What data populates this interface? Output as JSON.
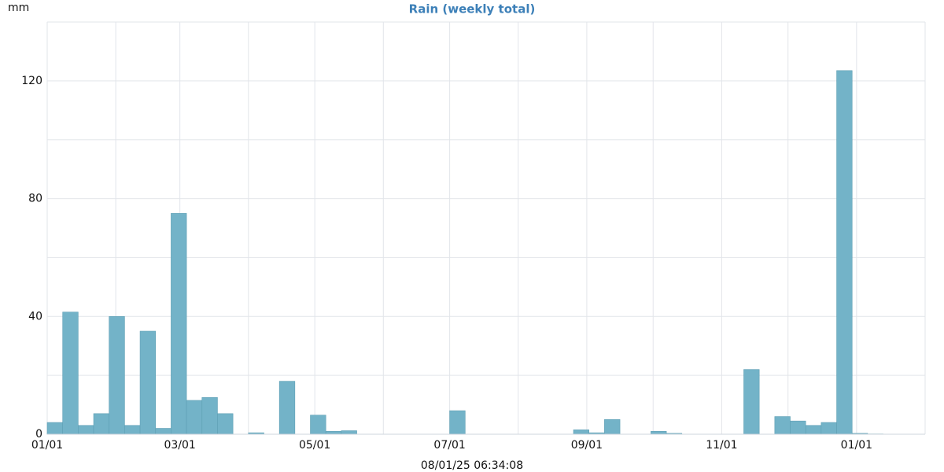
{
  "chart_data": {
    "type": "histogram",
    "title": "Rain (weekly total)",
    "y_label": "mm",
    "x_label": "08/01/25 06:34:08",
    "color": "#73b3c8",
    "bins": [
      0,
      7,
      14,
      21,
      28,
      35,
      42,
      49,
      56,
      63,
      70,
      77,
      84,
      91,
      98,
      105,
      112,
      119,
      126,
      133,
      140,
      147,
      154,
      161,
      168,
      175,
      182,
      189,
      196,
      203,
      210,
      217,
      224,
      231,
      238,
      245,
      252,
      259,
      266,
      273,
      280,
      287,
      294,
      301,
      308,
      315,
      322,
      329,
      336,
      343,
      350,
      357,
      364,
      371,
      378
    ],
    "values": [
      4,
      41.5,
      3,
      7,
      40,
      3,
      35,
      2,
      75,
      11.5,
      12.5,
      7,
      0,
      0.5,
      0,
      18,
      0,
      6.5,
      1,
      1.2,
      0,
      0,
      0,
      0,
      0,
      0,
      8,
      0,
      0,
      0,
      0,
      0,
      0,
      0,
      1.5,
      0.5,
      5,
      0,
      0,
      1,
      0.3,
      0,
      0,
      0,
      0,
      22,
      0,
      6,
      4.5,
      3,
      4,
      123.5,
      0.3,
      0.1
    ],
    "xlim": [
      0,
      397
    ],
    "xticks": [
      {
        "value": 0,
        "label": "01/01"
      },
      {
        "value": 60,
        "label": "03/01"
      },
      {
        "value": 121,
        "label": "05/01"
      },
      {
        "value": 182,
        "label": "07/01"
      },
      {
        "value": 244,
        "label": "09/01"
      },
      {
        "value": 305,
        "label": "11/01"
      },
      {
        "value": 366,
        "label": "01/01"
      }
    ],
    "minor_xticks": [
      31,
      91,
      152,
      213,
      274,
      335
    ],
    "ylim": [
      0,
      140
    ],
    "yticks": [
      0,
      40,
      80,
      120
    ],
    "minor_yticks": [
      20,
      60,
      100
    ],
    "grid": true
  }
}
